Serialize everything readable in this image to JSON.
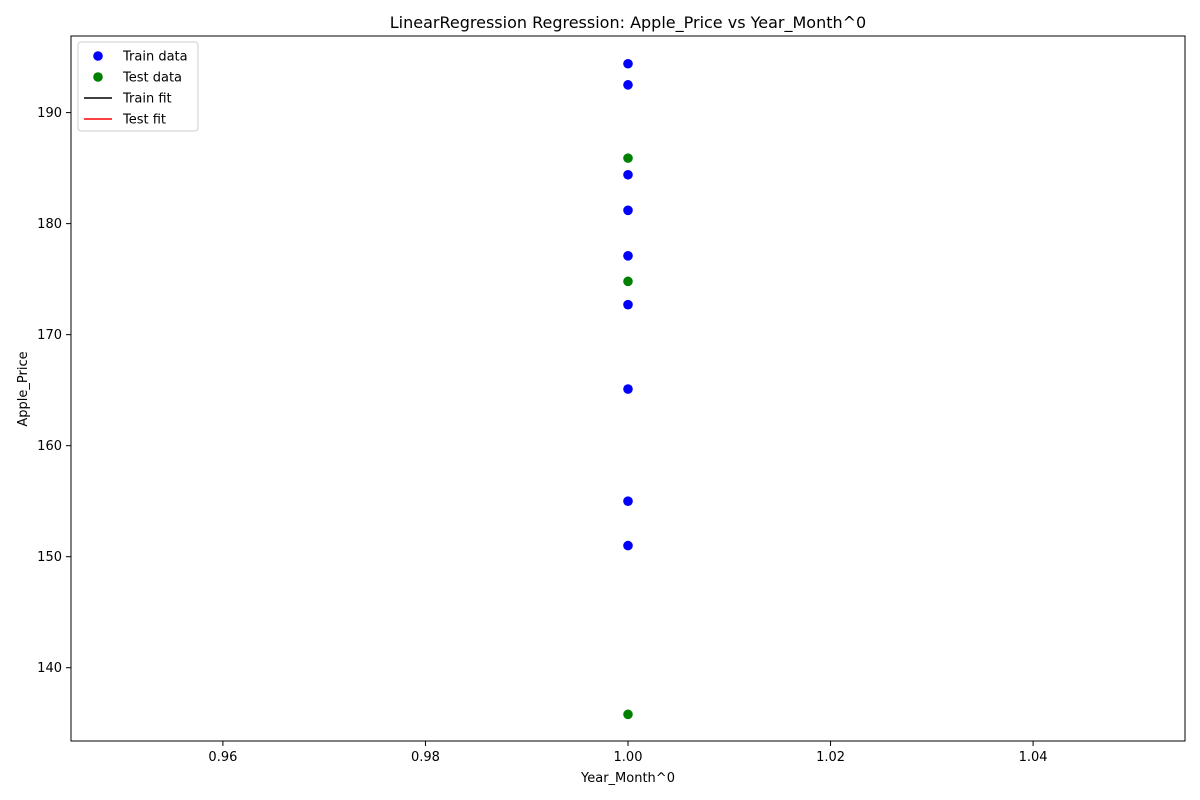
{
  "chart_data": {
    "type": "scatter",
    "title": "LinearRegression Regression: Apple_Price vs Year_Month^0",
    "xlabel": "Year_Month^0",
    "ylabel": "Apple_Price",
    "xlim": [
      0.945,
      1.055
    ],
    "ylim": [
      133.4,
      196.9
    ],
    "xticks": [
      0.96,
      0.98,
      1.0,
      1.02,
      1.04
    ],
    "xtick_labels": [
      "0.96",
      "0.98",
      "1.00",
      "1.02",
      "1.04"
    ],
    "yticks": [
      140,
      150,
      160,
      170,
      180,
      190
    ],
    "ytick_labels": [
      "140",
      "150",
      "160",
      "170",
      "180",
      "190"
    ],
    "grid": false,
    "legend_position": "top-left",
    "series": [
      {
        "name": "Train data",
        "kind": "scatter",
        "color": "#0000ff",
        "points": [
          {
            "x": 1.0,
            "y": 194.4
          },
          {
            "x": 1.0,
            "y": 192.5
          },
          {
            "x": 1.0,
            "y": 184.4
          },
          {
            "x": 1.0,
            "y": 181.2
          },
          {
            "x": 1.0,
            "y": 177.1
          },
          {
            "x": 1.0,
            "y": 172.7
          },
          {
            "x": 1.0,
            "y": 165.1
          },
          {
            "x": 1.0,
            "y": 155.0
          },
          {
            "x": 1.0,
            "y": 151.0
          }
        ]
      },
      {
        "name": "Test data",
        "kind": "scatter",
        "color": "#008000",
        "points": [
          {
            "x": 1.0,
            "y": 185.9
          },
          {
            "x": 1.0,
            "y": 174.8
          },
          {
            "x": 1.0,
            "y": 135.8
          }
        ]
      },
      {
        "name": "Train fit",
        "kind": "line",
        "color": "#000000",
        "points": []
      },
      {
        "name": "Test fit",
        "kind": "line",
        "color": "#ff0000",
        "points": []
      }
    ]
  }
}
